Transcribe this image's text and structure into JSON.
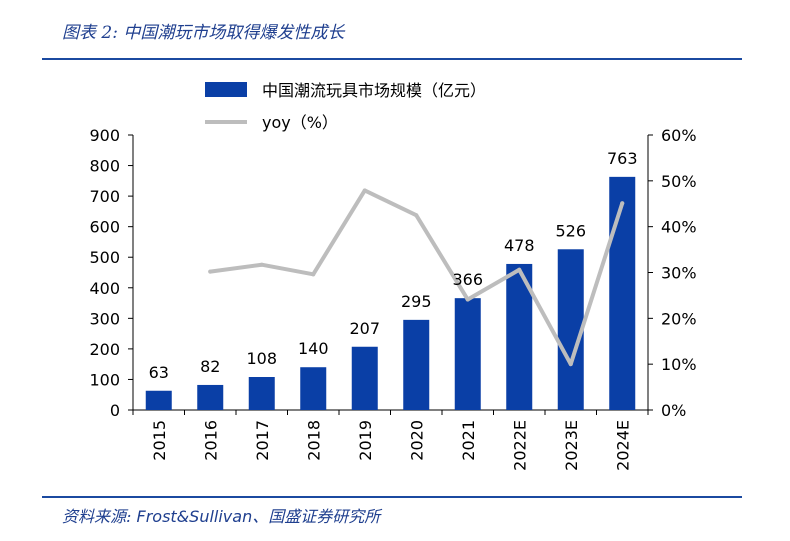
{
  "header": {
    "title": "图表 2:  中国潮玩市场取得爆发性成长"
  },
  "footer": {
    "source_prefix": "资料来源:",
    "source_brand": "Frost&Sullivan",
    "source_suffix": "、国盛证券研究所"
  },
  "colors": {
    "bar": "#0a3fa6",
    "line": "#bdbdbd",
    "rule": "#1b4aa0",
    "title": "#1f3f8f"
  },
  "chart_data": {
    "type": "bar",
    "categories": [
      "2015",
      "2016",
      "2017",
      "2018",
      "2019",
      "2020",
      "2021",
      "2022E",
      "2023E",
      "2024E"
    ],
    "series": [
      {
        "name": "中国潮流玩具市场规模（亿元）",
        "type": "bar",
        "axis": "left",
        "values": [
          63,
          82,
          108,
          140,
          207,
          295,
          366,
          478,
          526,
          763
        ],
        "labels": [
          "63",
          "82",
          "108",
          "140",
          "207",
          "295",
          "366",
          "478",
          "526",
          "763"
        ]
      },
      {
        "name": "yoy（%）",
        "type": "line",
        "axis": "right",
        "values": [
          null,
          30.2,
          31.7,
          29.6,
          47.9,
          42.5,
          24.1,
          30.6,
          10.0,
          45.1
        ]
      }
    ],
    "y_left": {
      "min": 0,
      "max": 900,
      "ticks": [
        "0",
        "100",
        "200",
        "300",
        "400",
        "500",
        "600",
        "700",
        "800",
        "900"
      ]
    },
    "y_right": {
      "min": 0,
      "max": 60,
      "ticks": [
        "0%",
        "10%",
        "20%",
        "30%",
        "40%",
        "50%",
        "60%"
      ]
    },
    "legend": {
      "position": "top-center"
    },
    "grid": false
  }
}
